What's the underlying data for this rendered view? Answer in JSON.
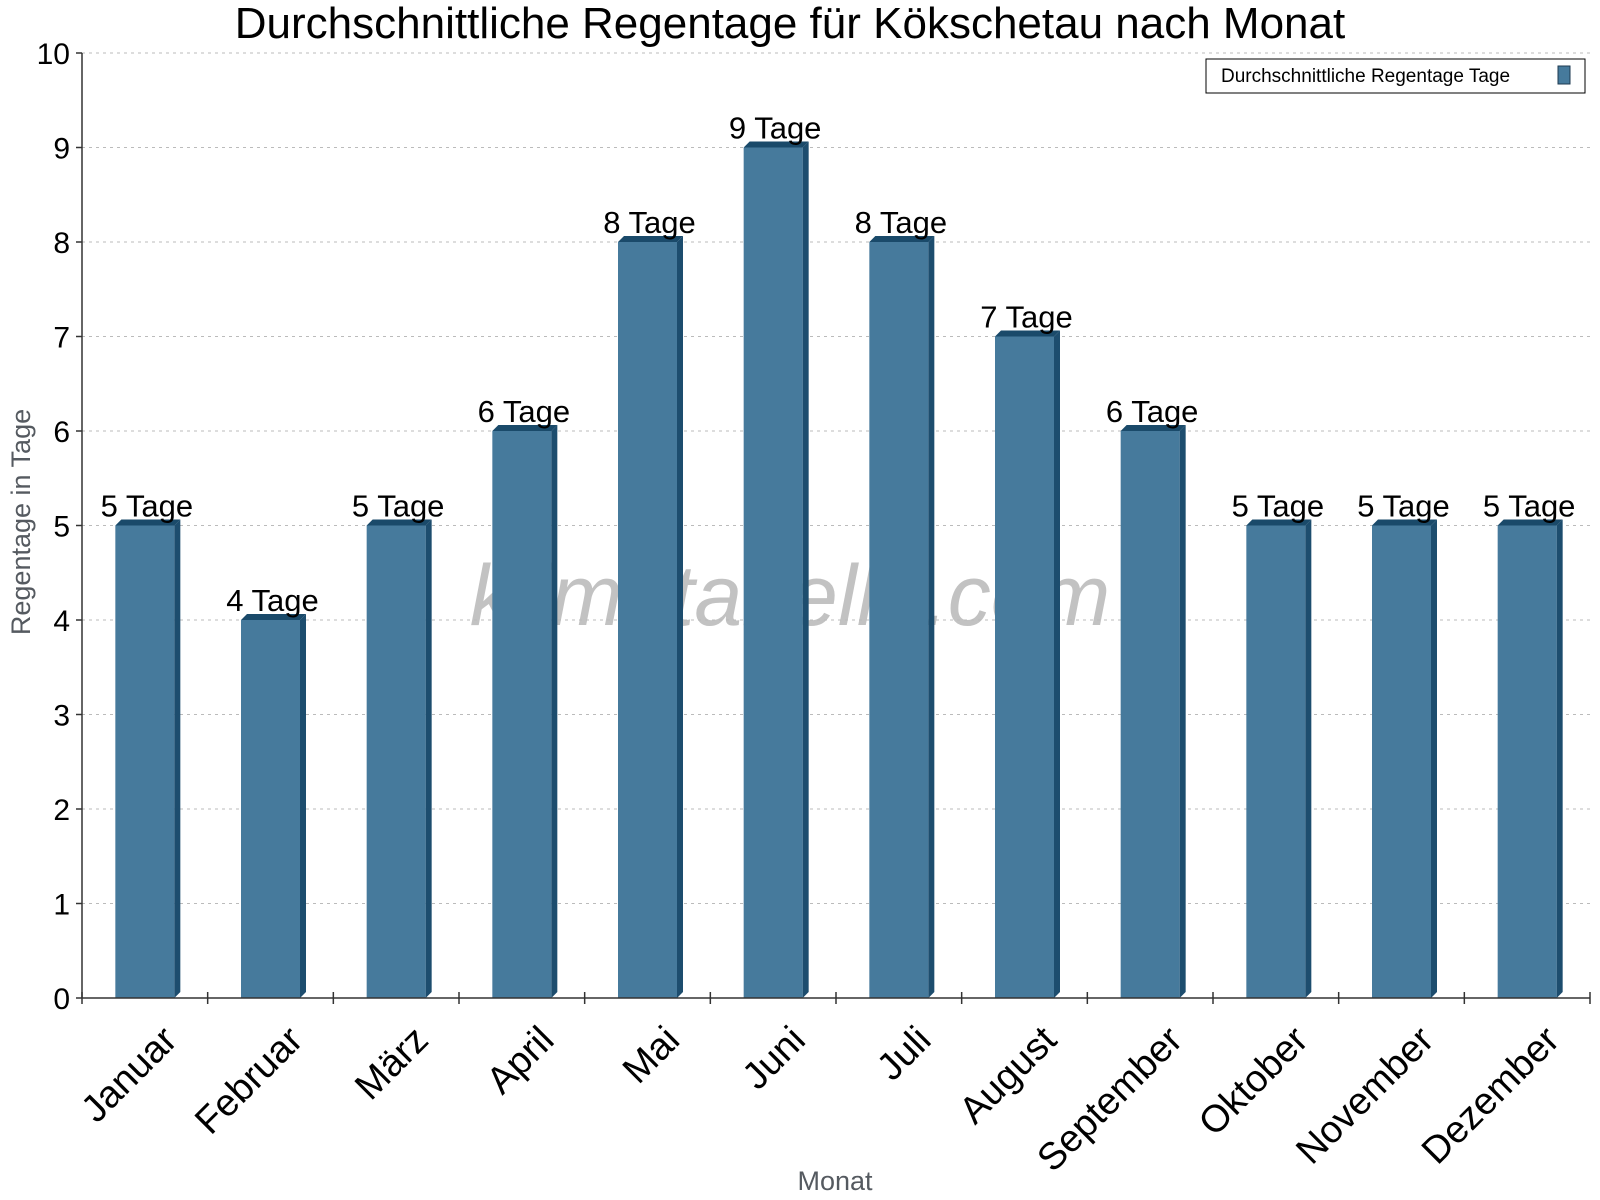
{
  "watermark": "klimatabelle.com",
  "colors": {
    "bar_front": "#467a9c",
    "bar_side": "#1d4d6e",
    "bar_top": "#1a4a6a"
  },
  "chart_data": {
    "type": "bar",
    "title": "Durchschnittliche Regentage für Kökschetau nach Monat",
    "xlabel": "Monat",
    "ylabel": "Regentage in Tage",
    "ylim": [
      0,
      10
    ],
    "yticks": [
      "0",
      "1",
      "2",
      "3",
      "4",
      "5",
      "6",
      "7",
      "8",
      "9",
      "10"
    ],
    "grid": true,
    "legend_position": "top-right",
    "categories": [
      "Januar",
      "Februar",
      "März",
      "April",
      "Mai",
      "Juni",
      "Juli",
      "August",
      "September",
      "Oktober",
      "November",
      "Dezember"
    ],
    "series": [
      {
        "name": "Durchschnittliche Regentage Tage",
        "values": [
          5,
          4,
          5,
          6,
          8,
          9,
          8,
          7,
          6,
          5,
          5,
          5
        ],
        "data_labels": [
          "5 Tage",
          "4 Tage",
          "5 Tage",
          "6 Tage",
          "8 Tage",
          "9 Tage",
          "8 Tage",
          "7 Tage",
          "6 Tage",
          "5 Tage",
          "5 Tage",
          "5 Tage"
        ]
      }
    ]
  }
}
